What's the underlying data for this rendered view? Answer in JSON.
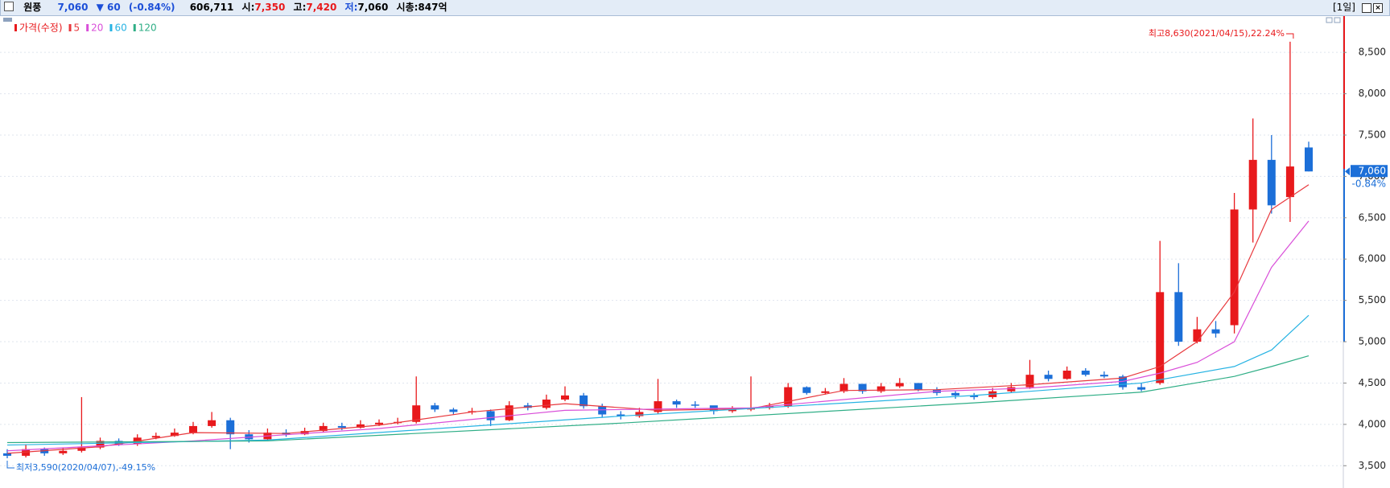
{
  "header": {
    "name": "원풍",
    "price": "7,060",
    "change": "▼ 60",
    "change_pct": "(-0.84%)",
    "volume": "606,711",
    "open_label": "시:",
    "open": "7,350",
    "high_label": "고:",
    "high": "7,420",
    "low_label": "저:",
    "low": "7,060",
    "market_cap": "시총:847억",
    "period": "[1일]"
  },
  "chart_data": {
    "type": "candlestick",
    "price": {
      "name": "가격(수정)",
      "up_color": "#e8191c",
      "down_color": "#1c6fd8",
      "open": [
        3650,
        3620,
        3700,
        3650,
        3680,
        3720,
        3800,
        3760,
        3840,
        3860,
        3900,
        3980,
        4050,
        3880,
        3820,
        3900,
        3880,
        3920,
        3980,
        3960,
        4000,
        4020,
        4030,
        4230,
        4180,
        4150,
        4160,
        4050,
        4230,
        4200,
        4300,
        4350,
        4220,
        4120,
        4100,
        4150,
        4280,
        4240,
        4230,
        4160,
        4180,
        4200,
        4220,
        4450,
        4380,
        4400,
        4490,
        4400,
        4460,
        4500,
        4420,
        4380,
        4350,
        4330,
        4400,
        4450,
        4600,
        4550,
        4650,
        4600,
        4580,
        4450,
        4500,
        5600,
        5000,
        5150,
        5200,
        6600,
        7200,
        6750,
        7350
      ],
      "high": [
        3700,
        3760,
        3720,
        3720,
        4330,
        3840,
        3830,
        3880,
        3900,
        3950,
        4030,
        4150,
        4080,
        3930,
        3950,
        3940,
        3960,
        4020,
        4020,
        4050,
        4060,
        4080,
        4580,
        4260,
        4200,
        4200,
        4180,
        4280,
        4260,
        4360,
        4460,
        4380,
        4250,
        4160,
        4200,
        4550,
        4300,
        4280,
        4220,
        4220,
        4580,
        4260,
        4500,
        4460,
        4440,
        4560,
        4460,
        4500,
        4560,
        4500,
        4450,
        4400,
        4380,
        4440,
        4500,
        4780,
        4650,
        4700,
        4680,
        4640,
        4600,
        4500,
        6220,
        5950,
        5300,
        5250,
        6800,
        7700,
        7500,
        8630,
        7420
      ],
      "low": [
        3590,
        3600,
        3620,
        3630,
        3660,
        3700,
        3740,
        3740,
        3820,
        3850,
        3880,
        3960,
        3700,
        3780,
        3800,
        3850,
        3870,
        3900,
        3930,
        3950,
        3980,
        4000,
        4010,
        4150,
        4120,
        4120,
        3980,
        4040,
        4170,
        4180,
        4280,
        4190,
        4080,
        4060,
        4080,
        4130,
        4200,
        4200,
        4120,
        4140,
        4160,
        4180,
        4200,
        4360,
        4360,
        4380,
        4370,
        4380,
        4440,
        4400,
        4350,
        4310,
        4300,
        4310,
        4380,
        4430,
        4520,
        4540,
        4580,
        4560,
        4420,
        4400,
        4480,
        4950,
        4980,
        5050,
        5100,
        6200,
        6550,
        6450,
        7060
      ],
      "close": [
        3620,
        3700,
        3650,
        3680,
        3720,
        3800,
        3760,
        3840,
        3860,
        3900,
        3980,
        4050,
        3880,
        3820,
        3900,
        3880,
        3920,
        3980,
        3960,
        4000,
        4020,
        4030,
        4230,
        4180,
        4150,
        4160,
        4050,
        4230,
        4200,
        4300,
        4350,
        4220,
        4120,
        4100,
        4150,
        4280,
        4240,
        4230,
        4160,
        4180,
        4200,
        4220,
        4450,
        4380,
        4400,
        4490,
        4400,
        4460,
        4500,
        4420,
        4380,
        4350,
        4330,
        4400,
        4450,
        4600,
        4550,
        4650,
        4600,
        4580,
        4450,
        4420,
        5600,
        5000,
        5150,
        5100,
        6600,
        7200,
        6650,
        7120,
        7060
      ]
    },
    "moving_averages": [
      {
        "name": "5",
        "color": "#e8383d",
        "x": [
          0,
          5,
          10,
          15,
          20,
          25,
          30,
          35,
          40,
          45,
          50,
          55,
          60,
          62,
          64,
          66,
          68,
          70
        ],
        "values": [
          3650,
          3730,
          3900,
          3890,
          3990,
          4150,
          4250,
          4170,
          4190,
          4410,
          4420,
          4480,
          4560,
          4700,
          5000,
          5600,
          6600,
          6900
        ]
      },
      {
        "name": "20",
        "color": "#d94fd9",
        "x": [
          0,
          10,
          20,
          30,
          40,
          50,
          55,
          60,
          62,
          64,
          66,
          68,
          70
        ],
        "values": [
          3680,
          3800,
          3950,
          4170,
          4200,
          4400,
          4440,
          4520,
          4620,
          4750,
          5000,
          5900,
          6460
        ]
      },
      {
        "name": "60",
        "color": "#27b3e3",
        "x": [
          0,
          14,
          33,
          52,
          61,
          66,
          68,
          70
        ],
        "values": [
          3750,
          3810,
          4100,
          4350,
          4500,
          4700,
          4900,
          5320
        ]
      },
      {
        "name": "120",
        "color": "#2fae86",
        "x": [
          0,
          14,
          33,
          52,
          61,
          66,
          68,
          70
        ],
        "values": [
          3780,
          3800,
          4015,
          4260,
          4390,
          4580,
          4700,
          4830
        ]
      }
    ],
    "ylim": [
      3240,
      8920
    ],
    "yticks": [
      {
        "value": 3500,
        "label": "3,500"
      },
      {
        "value": 4000,
        "label": "4,000"
      },
      {
        "value": 4500,
        "label": "4,500"
      },
      {
        "value": 5000,
        "label": "5,000"
      },
      {
        "value": 5500,
        "label": "5,500"
      },
      {
        "value": 6000,
        "label": "6,000"
      },
      {
        "value": 6500,
        "label": "6,500"
      },
      {
        "value": 7000,
        "label": "7,000"
      },
      {
        "value": 7500,
        "label": "7,500"
      },
      {
        "value": 8000,
        "label": "8,000"
      },
      {
        "value": 8500,
        "label": "8,500"
      }
    ],
    "grid": true,
    "high_note": "최고8,630(2021/04/15),22.24%",
    "low_note": "최저3,590(2020/04/07),-49.15%",
    "last_label": "7,060",
    "last_change": "-0.84%"
  }
}
